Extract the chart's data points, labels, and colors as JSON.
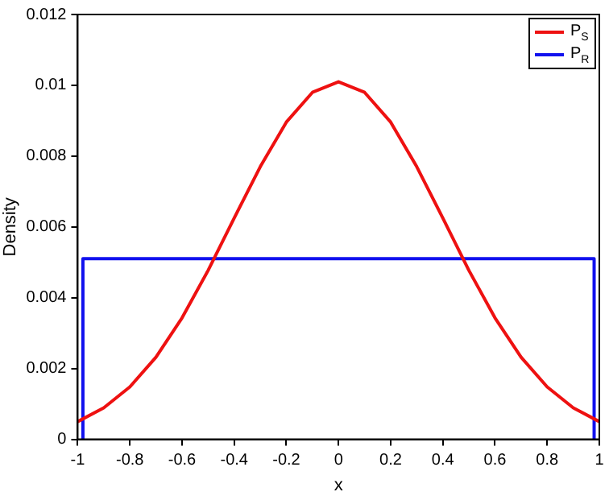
{
  "chart_data": {
    "type": "line",
    "xlabel": "x",
    "ylabel": "Density",
    "xlim": [
      -1,
      1
    ],
    "xticks": [
      -1,
      -0.8,
      -0.6,
      -0.4,
      -0.2,
      0,
      0.2,
      0.4,
      0.6,
      0.8,
      1
    ],
    "ylim": [
      0,
      0.012
    ],
    "yticks": [
      0,
      0.002,
      0.004,
      0.006,
      0.008,
      0.01,
      0.012
    ],
    "grid": false,
    "legend": "top right",
    "marker": "none",
    "line_style": "solid",
    "series": [
      {
        "name": "P$_{S}$",
        "color": "#ee1111",
        "x": [
          -1,
          -0.9,
          -0.8,
          -0.7,
          -0.6,
          -0.5,
          -0.4,
          -0.3,
          -0.2,
          -0.1,
          0,
          0.1,
          0.2,
          0.3,
          0.4,
          0.5,
          0.6,
          0.7,
          0.8,
          0.9,
          1
        ],
        "values": [
          0.0005,
          0.00089,
          0.00148,
          0.00232,
          0.00343,
          0.00477,
          0.00625,
          0.0077,
          0.00896,
          0.0098,
          0.0101,
          0.0098,
          0.00896,
          0.0077,
          0.00625,
          0.00477,
          0.00343,
          0.00232,
          0.00148,
          0.00089,
          0.0005
        ]
      },
      {
        "name": "P$_{R}$",
        "color": "#1111ee",
        "x": [
          -0.98,
          -0.98,
          0.98,
          0.98
        ],
        "values": [
          0,
          0.0051,
          0.0051,
          0
        ]
      }
    ]
  }
}
